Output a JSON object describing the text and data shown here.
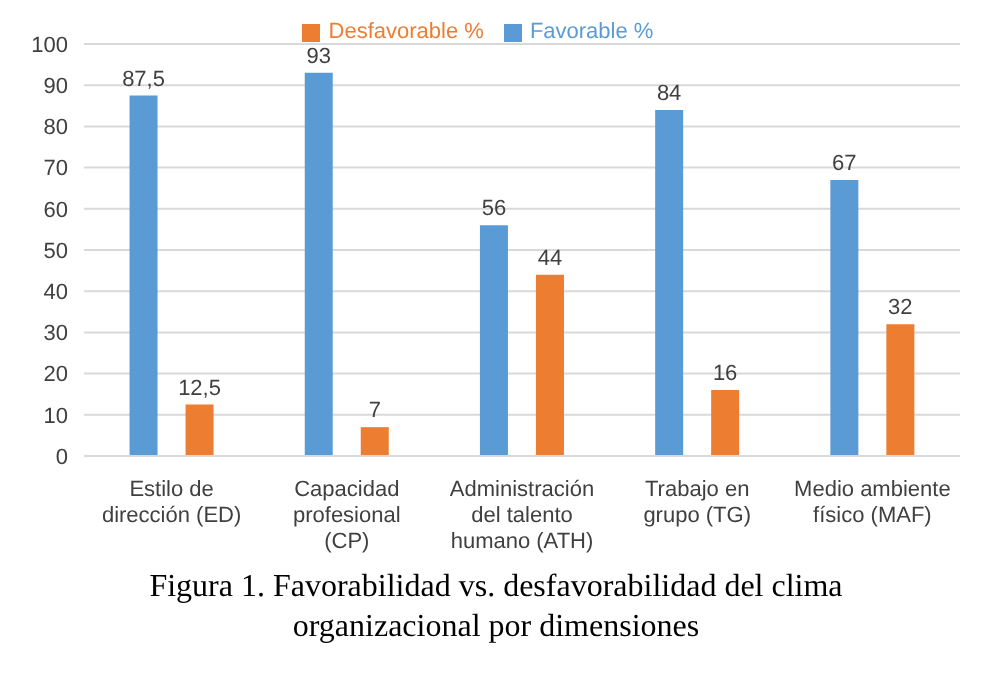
{
  "chart_data": {
    "type": "bar",
    "categories": [
      "Estilo de dirección (ED)",
      "Capacidad profesional (CP)",
      "Administración del talento humano (ATH)",
      "Trabajo en grupo (TG)",
      "Medio ambiente físico (MAF)"
    ],
    "series": [
      {
        "name": "Favorable %",
        "color": "#5b9bd5",
        "values": [
          87.5,
          93,
          56,
          84,
          67
        ],
        "value_labels": [
          "87,5",
          "93",
          "56",
          "84",
          "67"
        ]
      },
      {
        "name": "Desfavorable %",
        "color": "#ed7d31",
        "values": [
          12.5,
          7,
          44,
          16,
          32
        ],
        "value_labels": [
          "12,5",
          "7",
          "44",
          "16",
          "32"
        ]
      }
    ],
    "ylim": [
      0,
      100
    ],
    "yticks": [
      0,
      10,
      20,
      30,
      40,
      50,
      60,
      70,
      80,
      90,
      100
    ],
    "grid": "y",
    "legend": "top",
    "annotations": [
      "Figura 1. Favorabilidad vs. desfavorabilidad del clima organizacional por dimensiones"
    ]
  }
}
